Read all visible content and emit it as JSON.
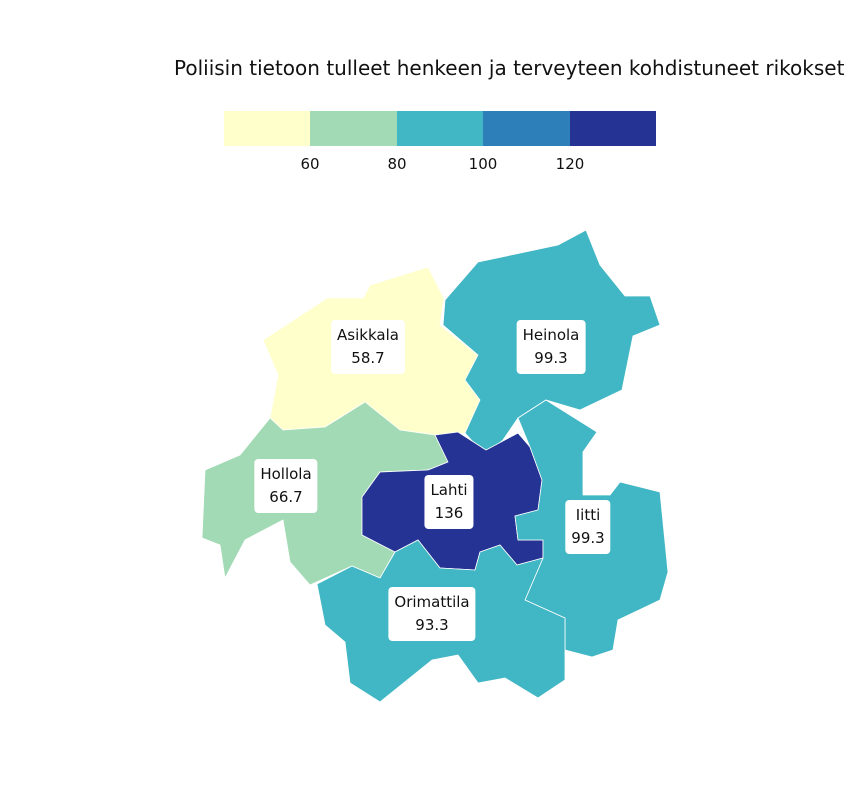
{
  "title": "Poliisin tietoon tulleet henkeen ja terveyteen kohdistuneet rikokset",
  "legend": {
    "colors": [
      "#ffffcc",
      "#a1dab4",
      "#41b6c4",
      "#2c7fb8",
      "#253494"
    ],
    "ticks": [
      "60",
      "80",
      "100",
      "120"
    ]
  },
  "chart_data": {
    "type": "choropleth",
    "title": "Poliisin tietoon tulleet henkeen ja terveyteen kohdistuneet rikokset",
    "breaks": [
      60,
      80,
      100,
      120
    ],
    "regions": [
      {
        "name": "Asikkala",
        "value": "58.7",
        "color": "#ffffcc"
      },
      {
        "name": "Heinola",
        "value": "99.3",
        "color": "#41b6c4"
      },
      {
        "name": "Hollola",
        "value": "66.7",
        "color": "#a1dab4"
      },
      {
        "name": "Lahti",
        "value": "136",
        "color": "#253494"
      },
      {
        "name": "Iitti",
        "value": "99.3",
        "color": "#41b6c4"
      },
      {
        "name": "Orimattila",
        "value": "93.3",
        "color": "#41b6c4"
      }
    ]
  }
}
